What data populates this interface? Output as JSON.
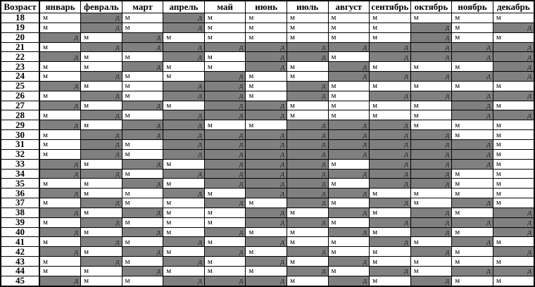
{
  "table": {
    "corner_label": "Возраст",
    "months": [
      "январь",
      "февраль",
      "март",
      "апрель",
      "май",
      "июнь",
      "июль",
      "август",
      "сентябрь",
      "октябрь",
      "ноябрь",
      "декабрь"
    ],
    "boy_letter": "м",
    "girl_letter": "д",
    "colors": {
      "girl_bg": "#808080",
      "boy_bg": "#ffffff",
      "border": "#000000",
      "text": "#000000"
    },
    "rows": [
      {
        "age": "18",
        "cells": [
          "м",
          "д",
          "м",
          "д",
          "м",
          "м",
          "м",
          "м",
          "м",
          "м",
          "м",
          "м"
        ]
      },
      {
        "age": "19",
        "cells": [
          "м",
          "д",
          "м",
          "д",
          "м",
          "м",
          "м",
          "м",
          "м",
          "д",
          "м",
          "д"
        ]
      },
      {
        "age": "20",
        "cells": [
          "д",
          "м",
          "д",
          "м",
          "м",
          "м",
          "м",
          "м",
          "м",
          "д",
          "м",
          "м"
        ]
      },
      {
        "age": "21",
        "cells": [
          "м",
          "д",
          "д",
          "д",
          "д",
          "д",
          "д",
          "д",
          "д",
          "д",
          "д",
          "д"
        ]
      },
      {
        "age": "22",
        "cells": [
          "д",
          "м",
          "м",
          "д",
          "м",
          "д",
          "д",
          "м",
          "д",
          "д",
          "д",
          "д"
        ]
      },
      {
        "age": "23",
        "cells": [
          "м",
          "м",
          "д",
          "м",
          "м",
          "д",
          "м",
          "д",
          "м",
          "м",
          "м",
          "д"
        ]
      },
      {
        "age": "24",
        "cells": [
          "м",
          "д",
          "м",
          "м",
          "д",
          "м",
          "м",
          "д",
          "д",
          "д",
          "д",
          "д"
        ]
      },
      {
        "age": "25",
        "cells": [
          "д",
          "м",
          "м",
          "д",
          "д",
          "м",
          "д",
          "м",
          "м",
          "м",
          "м",
          "м"
        ]
      },
      {
        "age": "26",
        "cells": [
          "м",
          "д",
          "м",
          "д",
          "д",
          "м",
          "д",
          "м",
          "д",
          "д",
          "д",
          "д"
        ]
      },
      {
        "age": "27",
        "cells": [
          "д",
          "м",
          "д",
          "м",
          "д",
          "д",
          "м",
          "м",
          "м",
          "м",
          "д",
          "м"
        ]
      },
      {
        "age": "28",
        "cells": [
          "м",
          "д",
          "м",
          "д",
          "д",
          "д",
          "м",
          "м",
          "м",
          "м",
          "д",
          "д"
        ]
      },
      {
        "age": "29",
        "cells": [
          "д",
          "м",
          "д",
          "д",
          "м",
          "м",
          "д",
          "д",
          "д",
          "м",
          "м",
          "м"
        ]
      },
      {
        "age": "30",
        "cells": [
          "м",
          "д",
          "д",
          "д",
          "д",
          "д",
          "д",
          "д",
          "д",
          "д",
          "м",
          "м"
        ]
      },
      {
        "age": "31",
        "cells": [
          "м",
          "д",
          "м",
          "д",
          "д",
          "д",
          "д",
          "д",
          "д",
          "д",
          "д",
          "м"
        ]
      },
      {
        "age": "32",
        "cells": [
          "м",
          "д",
          "м",
          "д",
          "д",
          "д",
          "д",
          "д",
          "д",
          "д",
          "д",
          "м"
        ]
      },
      {
        "age": "33",
        "cells": [
          "д",
          "м",
          "д",
          "м",
          "д",
          "д",
          "д",
          "м",
          "д",
          "д",
          "д",
          "м"
        ]
      },
      {
        "age": "34",
        "cells": [
          "д",
          "д",
          "м",
          "д",
          "д",
          "д",
          "д",
          "д",
          "д",
          "д",
          "м",
          "м"
        ]
      },
      {
        "age": "35",
        "cells": [
          "м",
          "м",
          "д",
          "м",
          "д",
          "д",
          "д",
          "м",
          "д",
          "д",
          "м",
          "м"
        ]
      },
      {
        "age": "36",
        "cells": [
          "д",
          "м",
          "м",
          "д",
          "м",
          "д",
          "д",
          "д",
          "м",
          "м",
          "м",
          "м"
        ]
      },
      {
        "age": "37",
        "cells": [
          "м",
          "д",
          "м",
          "м",
          "д",
          "м",
          "д",
          "м",
          "д",
          "м",
          "д",
          "м"
        ]
      },
      {
        "age": "38",
        "cells": [
          "д",
          "м",
          "д",
          "м",
          "м",
          "д",
          "м",
          "д",
          "м",
          "д",
          "м",
          "д"
        ]
      },
      {
        "age": "39",
        "cells": [
          "м",
          "д",
          "м",
          "м",
          "м",
          "д",
          "д",
          "м",
          "д",
          "д",
          "д",
          "д"
        ]
      },
      {
        "age": "40",
        "cells": [
          "д",
          "м",
          "д",
          "м",
          "д",
          "м",
          "м",
          "д",
          "м",
          "д",
          "м",
          "д"
        ]
      },
      {
        "age": "41",
        "cells": [
          "м",
          "д",
          "м",
          "д",
          "м",
          "д",
          "м",
          "м",
          "д",
          "м",
          "д",
          "м"
        ]
      },
      {
        "age": "42",
        "cells": [
          "д",
          "м",
          "д",
          "м",
          "д",
          "м",
          "д",
          "м",
          "м",
          "д",
          "м",
          "д"
        ]
      },
      {
        "age": "43",
        "cells": [
          "м",
          "д",
          "м",
          "д",
          "м",
          "д",
          "м",
          "д",
          "м",
          "м",
          "м",
          "м"
        ]
      },
      {
        "age": "44",
        "cells": [
          "м",
          "м",
          "д",
          "м",
          "м",
          "м",
          "д",
          "м",
          "д",
          "м",
          "д",
          "д"
        ]
      },
      {
        "age": "45",
        "cells": [
          "д",
          "м",
          "м",
          "д",
          "д",
          "д",
          "м",
          "д",
          "м",
          "д",
          "м",
          "м"
        ]
      }
    ]
  }
}
